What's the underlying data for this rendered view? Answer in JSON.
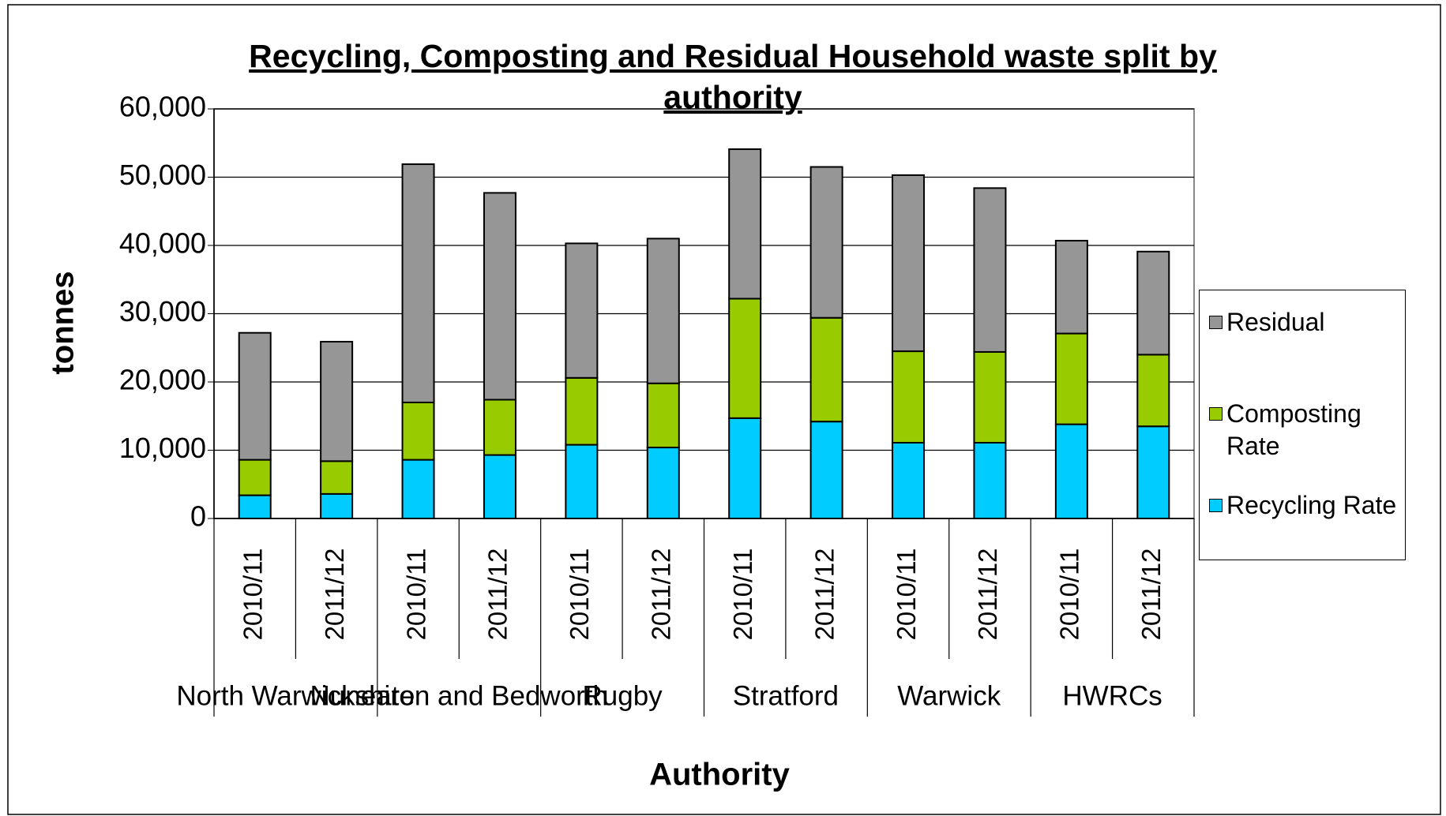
{
  "chart_data": {
    "type": "stacked_bar",
    "title": "Recycling, Composting and Residual Household waste split by authority",
    "y_label": "tonnes",
    "x_label": "Authority",
    "groups": [
      "North Warwickshire",
      "Nuneaton and Bedworth",
      "Rugby",
      "Stratford",
      "Warwick",
      "HWRCs"
    ],
    "categories": [
      "2010/11",
      "2011/12",
      "2010/11",
      "2011/12",
      "2010/11",
      "2011/12",
      "2010/11",
      "2011/12",
      "2010/11",
      "2011/12",
      "2010/11",
      "2011/12"
    ],
    "series": [
      {
        "name": "Recycling Rate",
        "color": "#00ccff",
        "values": [
          3400,
          3600,
          8600,
          9300,
          10800,
          10400,
          14700,
          14200,
          11100,
          11100,
          13800,
          13500
        ]
      },
      {
        "name": "Composting Rate",
        "color": "#99cc00",
        "values": [
          5200,
          4800,
          8400,
          8100,
          9800,
          9400,
          17500,
          15200,
          13400,
          13300,
          13300,
          10500
        ]
      },
      {
        "name": "Residual",
        "color": "#969696",
        "values": [
          18600,
          17500,
          34900,
          30300,
          19700,
          21200,
          21900,
          22100,
          25800,
          24000,
          13600,
          15100
        ]
      }
    ],
    "ylim": [
      0,
      60000
    ],
    "yticks": [
      0,
      {
        "value": 10000,
        "label": "10,000"
      },
      {
        "value": 20000,
        "label": "20,000"
      },
      {
        "value": 30000,
        "label": "30,000"
      },
      {
        "value": 40000,
        "label": "40,000"
      },
      {
        "value": 50000,
        "label": "50,000"
      },
      {
        "value": 60000,
        "label": "60,000"
      }
    ],
    "grid": true,
    "legend": "right"
  }
}
